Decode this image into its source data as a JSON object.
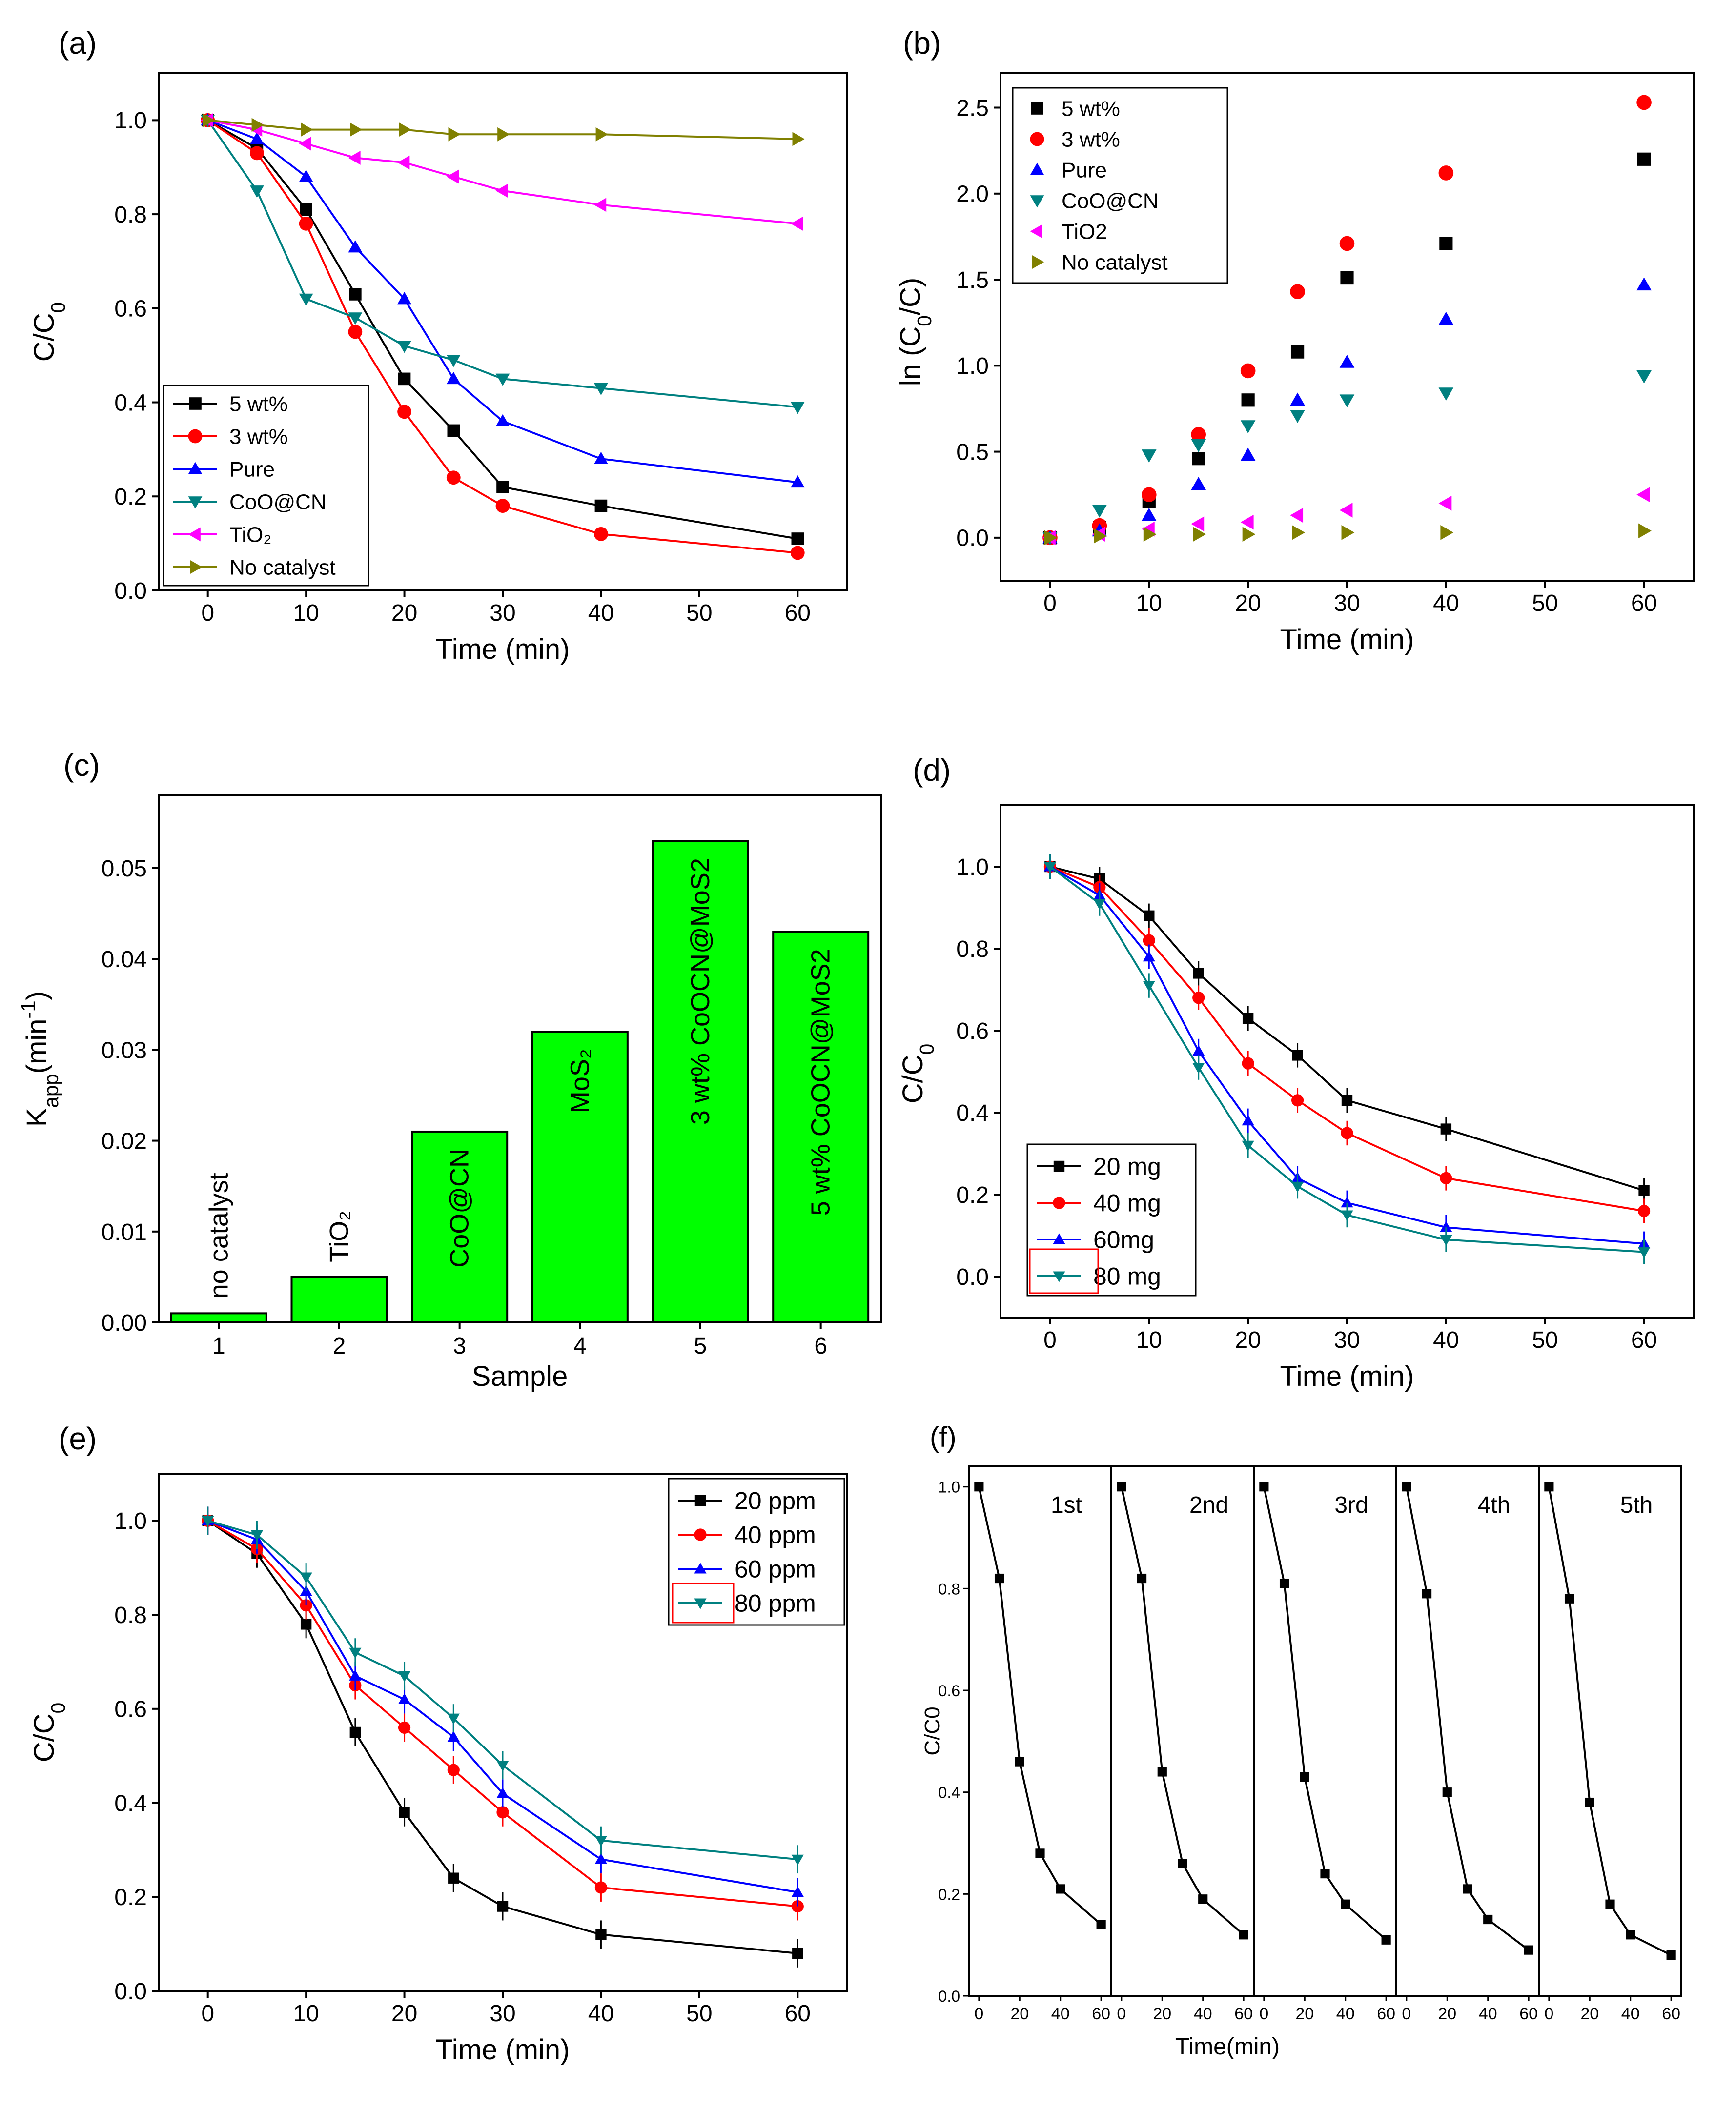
{
  "colors": {
    "black": "#000000",
    "red": "#ff0000",
    "blue": "#0000ff",
    "teal": "#008080",
    "magenta": "#ff00ff",
    "olive": "#808000",
    "bar_green": "#00ff00",
    "legend_box_red": "#ff0000",
    "legend_box_cyan": "#00ffff"
  },
  "chart_data": [
    {
      "panel": "a",
      "label": "(a)",
      "type": "line",
      "xlabel": "Time (min)",
      "ylabel": "C/C0",
      "xlim": [
        -5,
        65
      ],
      "ylim": [
        0,
        1.1
      ],
      "xticks": [
        0,
        10,
        20,
        30,
        40,
        50,
        60
      ],
      "yticks": [
        0.0,
        0.2,
        0.4,
        0.6,
        0.8,
        1.0
      ],
      "legend_position": "bottom-left",
      "series": [
        {
          "name": "5 wt%",
          "color": "#000000",
          "marker": "square",
          "x": [
            0,
            5,
            10,
            15,
            20,
            25,
            30,
            40,
            60
          ],
          "y": [
            1.0,
            0.94,
            0.81,
            0.63,
            0.45,
            0.34,
            0.22,
            0.18,
            0.11
          ]
        },
        {
          "name": "3 wt%",
          "color": "#ff0000",
          "marker": "circle",
          "x": [
            0,
            5,
            10,
            15,
            20,
            25,
            30,
            40,
            60
          ],
          "y": [
            1.0,
            0.93,
            0.78,
            0.55,
            0.38,
            0.24,
            0.18,
            0.12,
            0.08
          ]
        },
        {
          "name": "Pure",
          "color": "#0000ff",
          "marker": "triangle-up",
          "x": [
            0,
            5,
            10,
            15,
            20,
            25,
            30,
            40,
            60
          ],
          "y": [
            1.0,
            0.96,
            0.88,
            0.73,
            0.62,
            0.45,
            0.36,
            0.28,
            0.23
          ]
        },
        {
          "name": "CoO@CN",
          "color": "#008080",
          "marker": "triangle-down",
          "x": [
            0,
            5,
            10,
            15,
            20,
            25,
            30,
            40,
            60
          ],
          "y": [
            1.0,
            0.85,
            0.62,
            0.58,
            0.52,
            0.49,
            0.45,
            0.43,
            0.39
          ]
        },
        {
          "name": "TiO₂",
          "color": "#ff00ff",
          "marker": "triangle-left",
          "x": [
            0,
            5,
            10,
            15,
            20,
            25,
            30,
            40,
            60
          ],
          "y": [
            1.0,
            0.98,
            0.95,
            0.92,
            0.91,
            0.88,
            0.85,
            0.82,
            0.78
          ]
        },
        {
          "name": "No catalyst",
          "color": "#808000",
          "marker": "triangle-right",
          "x": [
            0,
            5,
            10,
            15,
            20,
            25,
            30,
            40,
            60
          ],
          "y": [
            1.0,
            0.99,
            0.98,
            0.98,
            0.98,
            0.97,
            0.97,
            0.97,
            0.96
          ]
        }
      ]
    },
    {
      "panel": "b",
      "label": "(b)",
      "type": "scatter",
      "xlabel": "Time (min)",
      "ylabel": "ln (C0/C)",
      "xlim": [
        -5,
        65
      ],
      "ylim": [
        -0.25,
        2.7
      ],
      "xticks": [
        0,
        10,
        20,
        30,
        40,
        50,
        60
      ],
      "yticks": [
        0.0,
        0.5,
        1.0,
        1.5,
        2.0,
        2.5
      ],
      "legend_position": "top-left",
      "series": [
        {
          "name": "5 wt%",
          "color": "#000000",
          "marker": "square",
          "x": [
            0,
            5,
            10,
            15,
            20,
            25,
            30,
            40,
            60
          ],
          "y": [
            0.0,
            0.06,
            0.21,
            0.46,
            0.8,
            1.08,
            1.51,
            1.71,
            2.2
          ]
        },
        {
          "name": "3 wt%",
          "color": "#ff0000",
          "marker": "circle",
          "x": [
            0,
            5,
            10,
            15,
            20,
            25,
            30,
            40,
            60
          ],
          "y": [
            0.0,
            0.07,
            0.25,
            0.6,
            0.97,
            1.43,
            1.71,
            2.12,
            2.53
          ]
        },
        {
          "name": "Pure",
          "color": "#0000ff",
          "marker": "triangle-up",
          "x": [
            0,
            5,
            10,
            15,
            20,
            25,
            30,
            40,
            60
          ],
          "y": [
            0.0,
            0.04,
            0.13,
            0.31,
            0.48,
            0.8,
            1.02,
            1.27,
            1.47
          ]
        },
        {
          "name": "CoO@CN",
          "color": "#008080",
          "marker": "triangle-down",
          "x": [
            0,
            5,
            10,
            15,
            20,
            25,
            30,
            40,
            60
          ],
          "y": [
            0.0,
            0.16,
            0.48,
            0.54,
            0.65,
            0.71,
            0.8,
            0.84,
            0.94
          ]
        },
        {
          "name": "TiO2",
          "color": "#ff00ff",
          "marker": "triangle-left",
          "x": [
            0,
            5,
            10,
            15,
            20,
            25,
            30,
            40,
            60
          ],
          "y": [
            0.0,
            0.02,
            0.05,
            0.08,
            0.09,
            0.13,
            0.16,
            0.2,
            0.25
          ]
        },
        {
          "name": "No catalyst",
          "color": "#808000",
          "marker": "triangle-right",
          "x": [
            0,
            5,
            10,
            15,
            20,
            25,
            30,
            40,
            60
          ],
          "y": [
            0.0,
            0.01,
            0.02,
            0.02,
            0.02,
            0.03,
            0.03,
            0.03,
            0.04
          ]
        }
      ]
    },
    {
      "panel": "c",
      "label": "(c)",
      "type": "bar",
      "xlabel": "Sample",
      "ylabel": "Kapp(min-1)",
      "ylim": [
        0,
        0.058
      ],
      "yticks": [
        0.0,
        0.01,
        0.02,
        0.03,
        0.04,
        0.05
      ],
      "categories": [
        "1",
        "2",
        "3",
        "4",
        "5",
        "6"
      ],
      "values": [
        0.001,
        0.005,
        0.021,
        0.032,
        0.053,
        0.043
      ],
      "bar_labels": [
        "no catalyst",
        "TiO₂",
        "CoO@CN",
        "MoS₂",
        "3 wt% CoOCN@MoS2",
        "5 wt% CoOCN@MoS2"
      ]
    },
    {
      "panel": "d",
      "label": "(d)",
      "type": "line",
      "xlabel": "Time (min)",
      "ylabel": "C/C0",
      "xlim": [
        -5,
        65
      ],
      "ylim": [
        -0.1,
        1.15
      ],
      "xticks": [
        0,
        10,
        20,
        30,
        40,
        50,
        60
      ],
      "yticks": [
        0.0,
        0.2,
        0.4,
        0.6,
        0.8,
        1.0
      ],
      "legend_position": "bottom-left",
      "series": [
        {
          "name": "20 mg",
          "color": "#000000",
          "marker": "square",
          "x": [
            0,
            5,
            10,
            15,
            20,
            25,
            30,
            40,
            60
          ],
          "y": [
            1.0,
            0.97,
            0.88,
            0.74,
            0.63,
            0.54,
            0.43,
            0.36,
            0.21
          ]
        },
        {
          "name": "40 mg",
          "color": "#ff0000",
          "marker": "circle",
          "x": [
            0,
            5,
            10,
            15,
            20,
            25,
            30,
            40,
            60
          ],
          "y": [
            1.0,
            0.95,
            0.82,
            0.68,
            0.52,
            0.43,
            0.35,
            0.24,
            0.16
          ]
        },
        {
          "name": "60mg",
          "color": "#0000ff",
          "marker": "triangle-up",
          "x": [
            0,
            5,
            10,
            15,
            20,
            25,
            30,
            40,
            60
          ],
          "y": [
            1.0,
            0.93,
            0.78,
            0.55,
            0.38,
            0.24,
            0.18,
            0.12,
            0.08
          ]
        },
        {
          "name": "80 mg",
          "color": "#008080",
          "marker": "triangle-down",
          "x": [
            0,
            5,
            10,
            15,
            20,
            25,
            30,
            40,
            60
          ],
          "y": [
            1.0,
            0.91,
            0.71,
            0.51,
            0.32,
            0.22,
            0.15,
            0.09,
            0.06
          ]
        }
      ]
    },
    {
      "panel": "e",
      "label": "(e)",
      "type": "line",
      "xlabel": "Time (min)",
      "ylabel": "C/C0",
      "xlim": [
        -5,
        65
      ],
      "ylim": [
        0,
        1.1
      ],
      "xticks": [
        0,
        10,
        20,
        30,
        40,
        50,
        60
      ],
      "yticks": [
        0.0,
        0.2,
        0.4,
        0.6,
        0.8,
        1.0
      ],
      "legend_position": "top-right",
      "series": [
        {
          "name": "20 ppm",
          "color": "#000000",
          "marker": "square",
          "x": [
            0,
            5,
            10,
            15,
            20,
            25,
            30,
            40,
            60
          ],
          "y": [
            1.0,
            0.93,
            0.78,
            0.55,
            0.38,
            0.24,
            0.18,
            0.12,
            0.08
          ]
        },
        {
          "name": "40 ppm",
          "color": "#ff0000",
          "marker": "circle",
          "x": [
            0,
            5,
            10,
            15,
            20,
            25,
            30,
            40,
            60
          ],
          "y": [
            1.0,
            0.94,
            0.82,
            0.65,
            0.56,
            0.47,
            0.38,
            0.22,
            0.18
          ]
        },
        {
          "name": "60 ppm",
          "color": "#0000ff",
          "marker": "triangle-up",
          "x": [
            0,
            5,
            10,
            15,
            20,
            25,
            30,
            40,
            60
          ],
          "y": [
            1.0,
            0.96,
            0.85,
            0.67,
            0.62,
            0.54,
            0.42,
            0.28,
            0.21
          ]
        },
        {
          "name": "80 ppm",
          "color": "#008080",
          "marker": "triangle-down",
          "x": [
            0,
            5,
            10,
            15,
            20,
            25,
            30,
            40,
            60
          ],
          "y": [
            1.0,
            0.97,
            0.88,
            0.72,
            0.67,
            0.58,
            0.48,
            0.32,
            0.28
          ]
        }
      ]
    },
    {
      "panel": "f",
      "label": "(f)",
      "type": "line",
      "xlabel": "Time(min)",
      "ylabel": "C/C0",
      "xlim": [
        -5,
        65
      ],
      "ylim": [
        0,
        1.04
      ],
      "xticks": [
        0,
        20,
        40,
        60
      ],
      "yticks": [
        0.0,
        0.2,
        0.4,
        0.6,
        0.8,
        1.0
      ],
      "cycles": [
        {
          "label": "1st",
          "x": [
            0,
            10,
            20,
            30,
            40,
            60
          ],
          "y": [
            1.0,
            0.82,
            0.46,
            0.28,
            0.21,
            0.14
          ]
        },
        {
          "label": "2nd",
          "x": [
            0,
            10,
            20,
            30,
            40,
            60
          ],
          "y": [
            1.0,
            0.82,
            0.44,
            0.26,
            0.19,
            0.12
          ]
        },
        {
          "label": "3rd",
          "x": [
            0,
            10,
            20,
            30,
            40,
            60
          ],
          "y": [
            1.0,
            0.81,
            0.43,
            0.24,
            0.18,
            0.11
          ]
        },
        {
          "label": "4th",
          "x": [
            0,
            10,
            20,
            30,
            40,
            60
          ],
          "y": [
            1.0,
            0.79,
            0.4,
            0.21,
            0.15,
            0.09
          ]
        },
        {
          "label": "5th",
          "x": [
            0,
            10,
            20,
            30,
            40,
            60
          ],
          "y": [
            1.0,
            0.78,
            0.38,
            0.18,
            0.12,
            0.08
          ]
        }
      ]
    }
  ]
}
